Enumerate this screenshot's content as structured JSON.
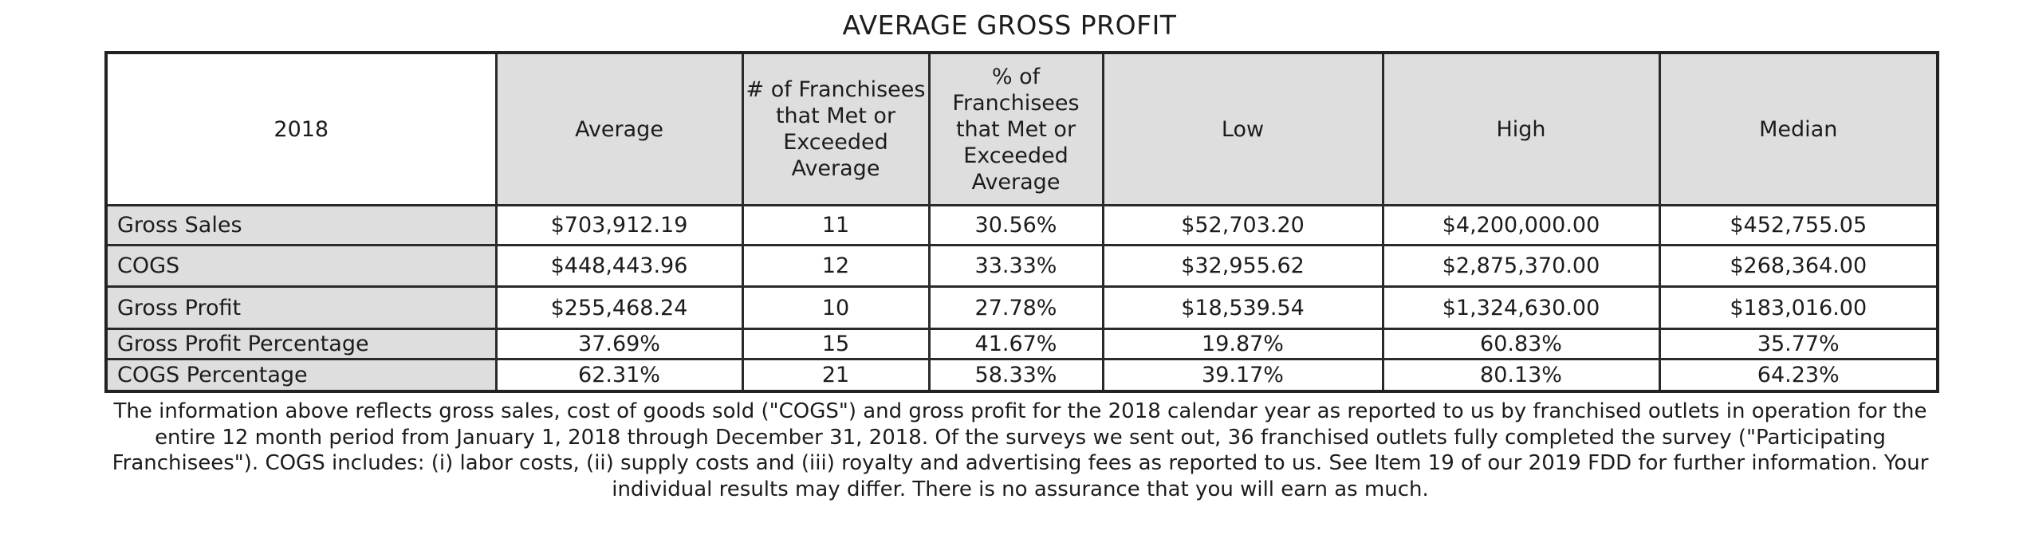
{
  "title": "AVERAGE GROSS PROFIT",
  "table": {
    "headers": [
      "2018",
      "Average",
      "# of Franchisees that Met or Exceeded Average",
      "% of Franchisees that Met or Exceeded Average",
      "Low",
      "High",
      "Median"
    ],
    "rows": [
      {
        "label": "Gross Sales",
        "cells": [
          "$703,912.19",
          "11",
          "30.56%",
          "$52,703.20",
          "$4,200,000.00",
          "$452,755.05"
        ]
      },
      {
        "label": "COGS",
        "cells": [
          "$448,443.96",
          "12",
          "33.33%",
          "$32,955.62",
          "$2,875,370.00",
          "$268,364.00"
        ]
      },
      {
        "label": "Gross Profit",
        "cells": [
          "$255,468.24",
          "10",
          "27.78%",
          "$18,539.54",
          "$1,324,630.00",
          "$183,016.00"
        ]
      },
      {
        "label": "Gross Profit Percentage",
        "cells": [
          "37.69%",
          "15",
          "41.67%",
          "19.87%",
          "60.83%",
          "35.77%"
        ]
      },
      {
        "label": "COGS Percentage",
        "cells": [
          "62.31%",
          "21",
          "58.33%",
          "39.17%",
          "80.13%",
          "64.23%"
        ]
      }
    ]
  },
  "footnote": "The information above reflects gross sales, cost of goods sold (\"COGS\") and gross profit for the 2018 calendar year as reported to us by franchised outlets in operation for the entire 12 month period from January 1, 2018 through December 31, 2018. Of the surveys we sent out, 36 franchised outlets fully completed the survey (\"Participating Franchisees\"). COGS includes: (i) labor costs, (ii) supply costs and (iii) royalty and advertising fees as reported to us. See Item 19 of our 2019 FDD for further information. Your individual results may differ. There is no assurance that you will earn as much."
}
